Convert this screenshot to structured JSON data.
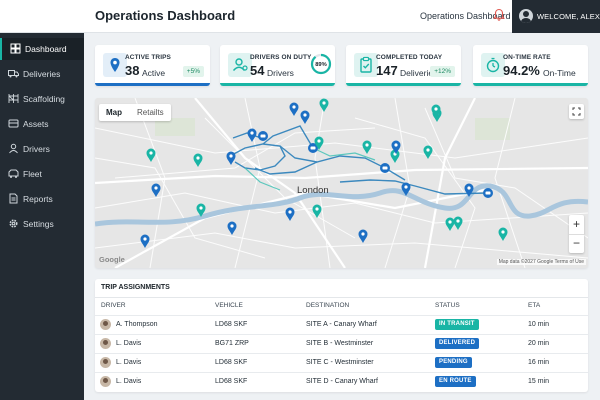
{
  "header": {
    "title": "Operations Dashboard",
    "breadcrumb": "Operations Dashboard",
    "user_label": "WELCOME, ALEX",
    "icons": {
      "bell": "bell-icon",
      "avatar": "user-avatar"
    }
  },
  "sidebar": {
    "items": [
      {
        "label": "Dashboard",
        "icon": "dashboard-icon",
        "active": true
      },
      {
        "label": "Deliveries",
        "icon": "truck-icon"
      },
      {
        "label": "Scaffolding",
        "icon": "scaffolding-icon"
      },
      {
        "label": "Assets",
        "icon": "asset-icon"
      },
      {
        "label": "Drivers",
        "icon": "driver-icon"
      },
      {
        "label": "Fleet",
        "icon": "fleet-icon"
      },
      {
        "label": "Reports",
        "icon": "reports-icon"
      },
      {
        "label": "Settings",
        "icon": "gear-icon"
      }
    ]
  },
  "kpis": [
    {
      "title": "ACTIVE TRIPS",
      "value": "38",
      "unit": "Active",
      "delta": "+5%",
      "icon": "map-pin-icon",
      "accent": "#1d6fc4"
    },
    {
      "title": "DRIVERS ON DUTY",
      "value": "54",
      "unit": "Drivers",
      "gauge": "89%",
      "gauge_fraction": 0.89,
      "icon": "driver-icon",
      "accent": "#19b5a5"
    },
    {
      "title": "COMPLETED TODAY",
      "value": "147",
      "unit": "Deliveries",
      "delta": "+12%",
      "icon": "clipboard-check-icon",
      "accent": "#19b5a5"
    },
    {
      "title": "ON-TIME RATE",
      "value": "94.2%",
      "unit": "On-Time",
      "icon": "stopwatch-icon",
      "accent": "#19b5a5"
    }
  ],
  "map": {
    "tabs": [
      "Map",
      "Retailts"
    ],
    "active_tab": "Map",
    "city_label": "London",
    "zoom_in": "+",
    "zoom_out": "−",
    "logo": "Google",
    "attribution": "Map data ©2027 Google    Terms of Use",
    "colors": {
      "water": "#a9c6dd",
      "road": "#ffffff",
      "route": "#2a7fba",
      "pin_blue": "#1d6fc4",
      "pin_teal": "#19b5a5"
    }
  },
  "trips": {
    "title": "TRIP ASSIGNMENTS",
    "columns": [
      "DRIVER",
      "VEHICLE",
      "DESTINATION",
      "STATUS",
      "ETA"
    ],
    "rows": [
      {
        "driver": "A. Thompson",
        "vehicle": "LD68 SKF",
        "destination": "SITE A - Canary Wharf",
        "status": "IN TRANSIT",
        "status_color": "#19b5a5",
        "eta": "10 min"
      },
      {
        "driver": "L. Davis",
        "vehicle": "BG71 ZRP",
        "destination": "SITE B - Westminster",
        "status": "DELIVERED",
        "status_color": "#1d6fc4",
        "eta": "20 min"
      },
      {
        "driver": "L. Davis",
        "vehicle": "LD68 SKF",
        "destination": "SITE C - Westminster",
        "status": "PENDING",
        "status_color": "#1d6fc4",
        "eta": "16 min"
      },
      {
        "driver": "L. Davis",
        "vehicle": "LD68 SKF",
        "destination": "SITE D - Canary Wharf",
        "status": "EN ROUTE",
        "status_color": "#1d6fc4",
        "eta": "15 min"
      }
    ]
  }
}
